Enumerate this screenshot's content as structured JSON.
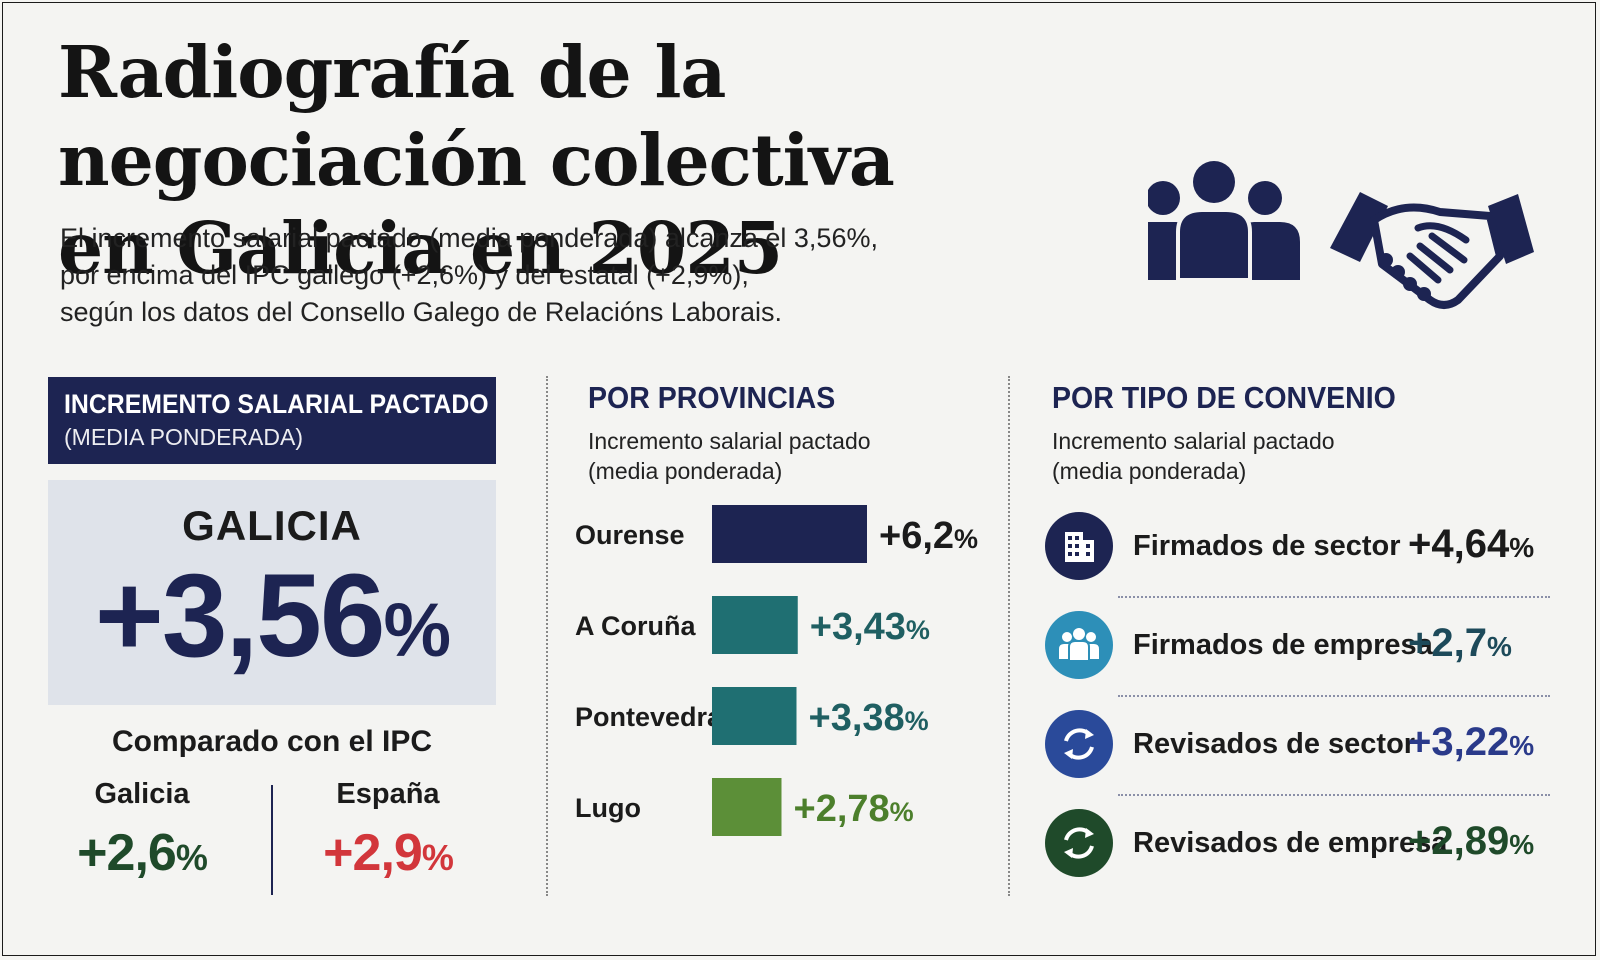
{
  "header": {
    "title_line1": "Radiografía de la negociación colectiva",
    "title_line2": "en Galicia en 2025",
    "subtitle_line1": "El incremento salarial pactado (media ponderada) alcanza el 3,56%,",
    "subtitle_line2": "por encima del IPC gallego (+2,6%) y del estatal (+2,9%),",
    "subtitle_line3": "según los datos del Consello Galego de Relacións Laborais.",
    "icons": [
      "group-people-icon",
      "handshake-icon"
    ]
  },
  "left_panel": {
    "header_line1": "INCREMENTO SALARIAL PACTADO",
    "header_line2": "(MEDIA PONDERADA)",
    "region_label": "GALICIA",
    "region_value": "+3,56",
    "percent_sign": "%",
    "comparison_title": "Comparado con el IPC",
    "ipc": [
      {
        "name": "Galicia",
        "value": "+2,6",
        "color": "#1f4a2a"
      },
      {
        "name": "España",
        "value": "+2,9",
        "color": "#d2363b"
      }
    ]
  },
  "provincias": {
    "title": "POR PROVINCIAS",
    "subtitle_line1": "Incremento salarial pactado",
    "subtitle_line2": "(media ponderada)"
  },
  "convenio": {
    "title": "POR TIPO DE CONVENIO",
    "subtitle_line1": "Incremento salarial pactado",
    "subtitle_line2": "(media ponderada)",
    "items": [
      {
        "label": "Firmados de sector",
        "value": "+4,64",
        "icon": "office-building-icon",
        "circle_color": "#1d2452",
        "value_color": "#1b1b1b"
      },
      {
        "label": "Firmados de empresa",
        "value": "+2,7",
        "icon": "workers-group-icon",
        "circle_color": "#2d8fb8",
        "value_color": "#1d4a5a"
      },
      {
        "label": "Revisados de sector",
        "value": "+3,22",
        "icon": "refresh-cycle-icon",
        "circle_color": "#2a4a9a",
        "value_color": "#2a3a8a"
      },
      {
        "label": "Revisados de empresa",
        "value": "+2,89",
        "icon": "refresh-cycle-icon",
        "circle_color": "#1f4a2a",
        "value_color": "#1f4a2a"
      }
    ]
  },
  "chart_data": {
    "type": "bar",
    "orientation": "horizontal",
    "categories": [
      "Ourense",
      "A Coruña",
      "Pontevedra",
      "Lugo"
    ],
    "values": [
      6.2,
      3.43,
      3.38,
      2.78
    ],
    "value_labels": [
      "+6,2",
      "+3,43",
      "+3,38",
      "+2,78"
    ],
    "percent_sign": "%",
    "colors": [
      "#1d2452",
      "#1f6f72",
      "#1f6f72",
      "#5c8f38"
    ],
    "label_colors": [
      "#1b1b1b",
      "#1f5f62",
      "#1f5f62",
      "#4c7f2c"
    ],
    "xlim": [
      0,
      6.2
    ],
    "grid": false
  }
}
